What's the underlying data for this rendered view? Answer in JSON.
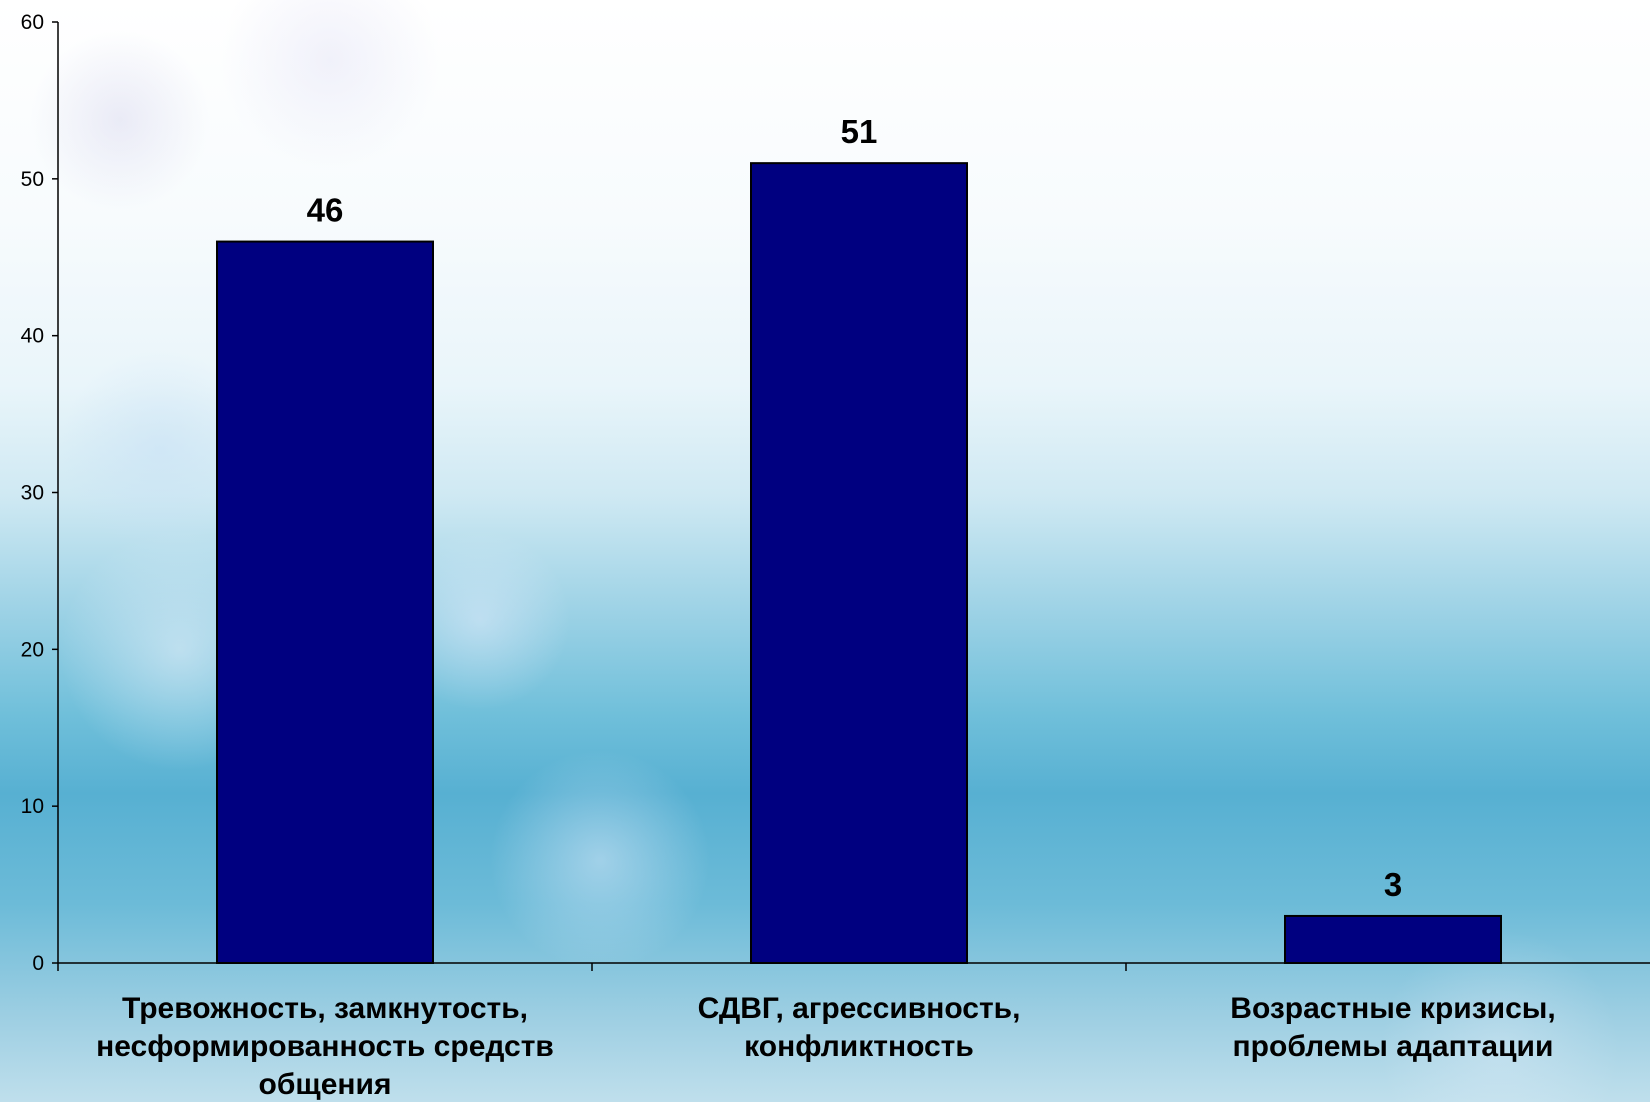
{
  "chart_data": {
    "type": "bar",
    "categories": [
      [
        "Тревожность, замкнутость,",
        "несформированность средств",
        "общения"
      ],
      [
        "СДВГ, агрессивность,",
        "конфликтность"
      ],
      [
        "Возрастные кризисы,",
        "проблемы адаптации"
      ]
    ],
    "values": [
      46,
      51,
      3
    ],
    "data_labels": [
      "46",
      "51",
      "3"
    ],
    "title": "",
    "xlabel": "",
    "ylabel": "",
    "ylim": [
      0,
      60
    ],
    "y_ticks": [
      0,
      10,
      20,
      30,
      40,
      50,
      60
    ],
    "y_tick_labels": [
      "0",
      "10",
      "20",
      "30",
      "40",
      "50",
      "60"
    ],
    "grid": false,
    "legend": "none",
    "colors": {
      "bar": "#000080",
      "bar_stroke": "#000000",
      "axis": "#000000"
    }
  }
}
